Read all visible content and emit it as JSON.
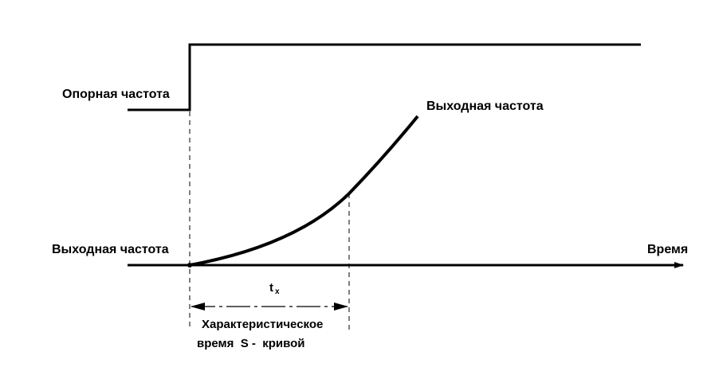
{
  "labels": {
    "reference_frequency": "Опорная частота",
    "output_frequency_curve": "Выходная частота",
    "output_frequency_axis": "Выходная частота",
    "time_axis": "Время",
    "tx_main": "t",
    "tx_sub": "x",
    "characteristic_line1": "Характеристическое",
    "characteristic_line2": "время  S -  кривой"
  },
  "colors": {
    "ink": "#000000",
    "background": "#ffffff"
  }
}
